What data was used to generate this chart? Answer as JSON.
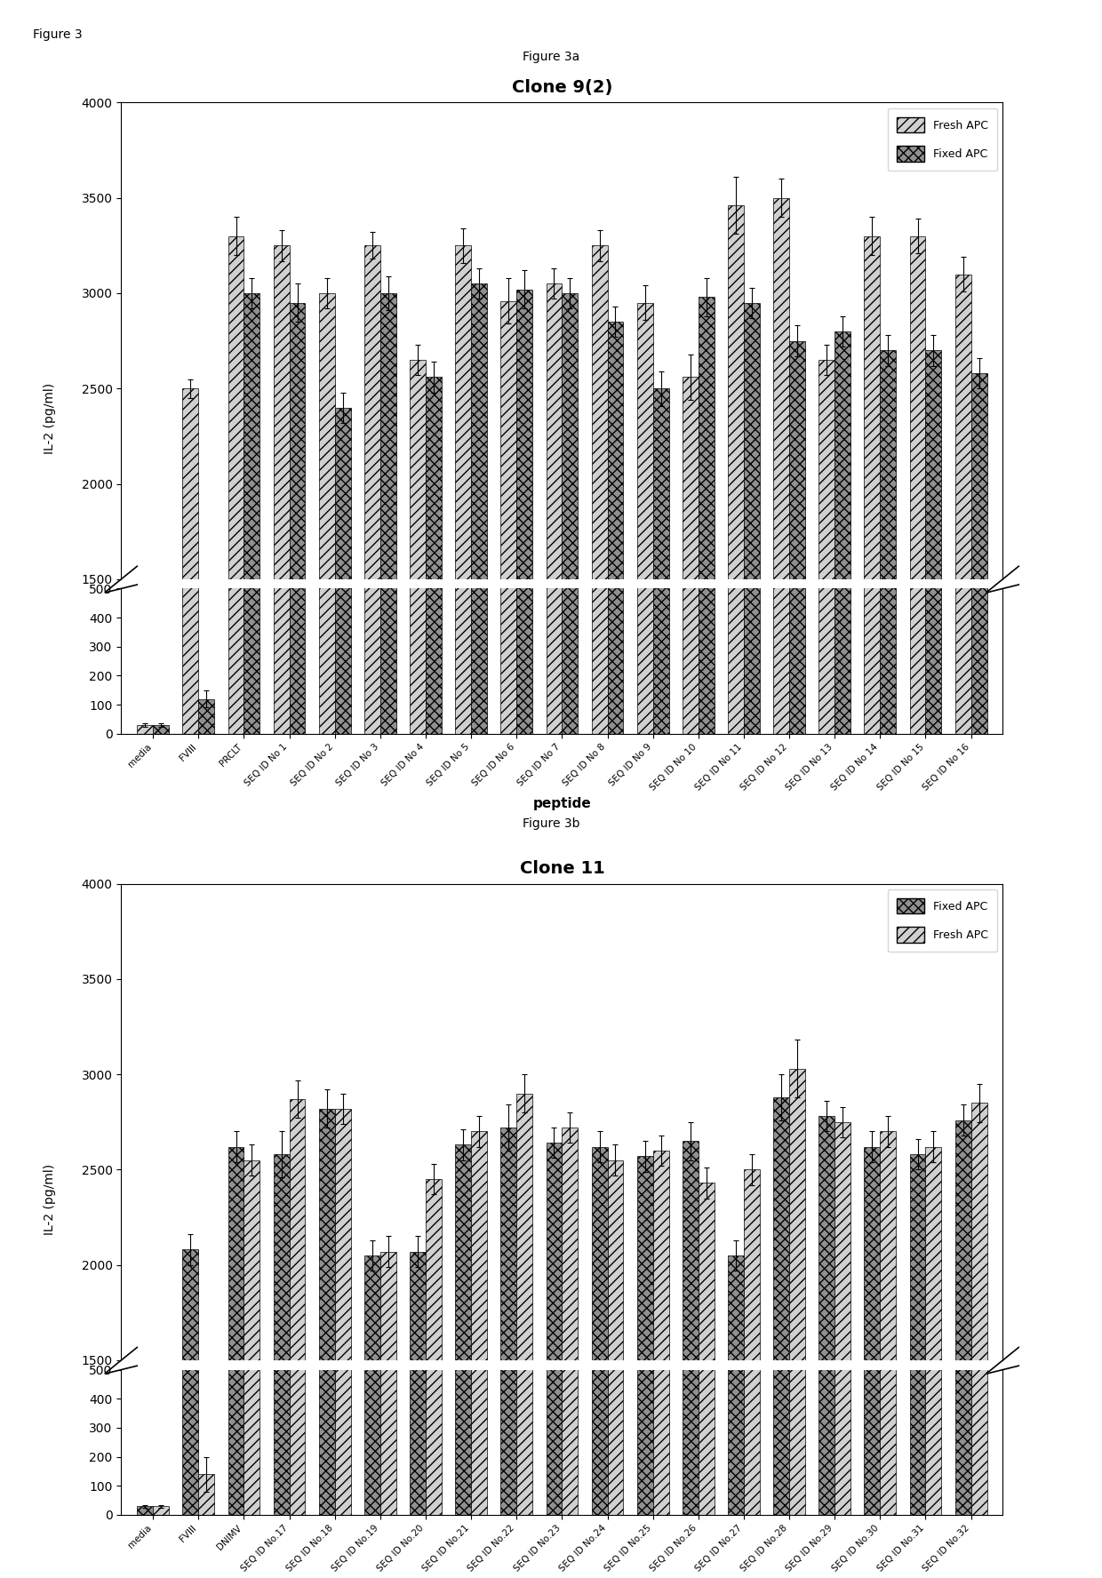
{
  "fig3_label": "Figure 3",
  "fig3a_label": "Figure 3a",
  "fig3b_label": "Figure 3b",
  "chart1_title": "Clone 9(2)",
  "chart2_title": "Clone 11",
  "ylabel": "IL-2 (pg/ml)",
  "xlabel": "peptide",
  "chart1_legend": [
    "Fresh APC",
    "Fixed APC"
  ],
  "chart2_legend": [
    "Fixed APC",
    "Fresh APC"
  ],
  "chart1_categories": [
    "media",
    "FVIII",
    "PRCLT",
    "SEQ ID No 1",
    "SEQ ID No 2",
    "SEQ ID No 3",
    "SEQ ID No 4",
    "SEQ ID No 5",
    "SEQ ID No 6",
    "SEQ ID No 7",
    "SEQ ID No 8",
    "SEQ ID No 9",
    "SEQ ID No 10",
    "SEQ ID No 11",
    "SEQ ID No 12",
    "SEQ ID No 13",
    "SEQ ID No 14",
    "SEQ ID No 15",
    "SEQ ID No 16"
  ],
  "chart2_categories": [
    "media",
    "FVIII",
    "DNIMV",
    "SEQ ID No.17",
    "SEQ ID No.18",
    "SEQ ID No.19",
    "SEQ ID No.20",
    "SEQ ID No.21",
    "SEQ ID No.22",
    "SEQ ID No.23",
    "SEQ ID No.24",
    "SEQ ID No.25",
    "SEQ ID No.26",
    "SEQ ID No.27",
    "SEQ ID No.28",
    "SEQ ID No.29",
    "SEQ ID No.30",
    "SEQ ID No.31",
    "SEQ ID No.32"
  ],
  "chart1_bar1": [
    30,
    2500,
    3300,
    3250,
    3000,
    3250,
    2650,
    3250,
    2960,
    3050,
    3250,
    2950,
    2560,
    3460,
    3500,
    2650,
    3300,
    3300,
    3100
  ],
  "chart1_bar2": [
    30,
    120,
    3000,
    2950,
    2400,
    3000,
    2560,
    3050,
    3020,
    3000,
    2850,
    2500,
    2980,
    2950,
    2750,
    2800,
    2700,
    2700,
    2580
  ],
  "chart1_err1": [
    5,
    50,
    100,
    80,
    80,
    70,
    80,
    90,
    120,
    80,
    80,
    90,
    120,
    150,
    100,
    80,
    100,
    90,
    90
  ],
  "chart1_err2": [
    5,
    30,
    80,
    100,
    80,
    90,
    80,
    80,
    100,
    80,
    80,
    90,
    100,
    80,
    80,
    80,
    80,
    80,
    80
  ],
  "chart2_bar1": [
    30,
    2080,
    2620,
    2580,
    2820,
    2050,
    2070,
    2630,
    2720,
    2640,
    2620,
    2570,
    2650,
    2050,
    2880,
    2780,
    2620,
    2580,
    2760
  ],
  "chart2_bar2": [
    30,
    140,
    2550,
    2870,
    2820,
    2070,
    2450,
    2700,
    2900,
    2720,
    2550,
    2600,
    2430,
    2500,
    3030,
    2750,
    2700,
    2620,
    2850
  ],
  "chart2_err1": [
    5,
    80,
    80,
    120,
    100,
    80,
    80,
    80,
    120,
    80,
    80,
    80,
    100,
    80,
    120,
    80,
    80,
    80,
    80
  ],
  "chart2_err2": [
    5,
    60,
    80,
    100,
    80,
    80,
    80,
    80,
    100,
    80,
    80,
    80,
    80,
    80,
    150,
    80,
    80,
    80,
    100
  ],
  "color_fresh": "#d0d0d0",
  "color_fixed": "#909090",
  "hatch_fresh": "///",
  "hatch_fixed": "xxx",
  "background_color": "#ffffff"
}
